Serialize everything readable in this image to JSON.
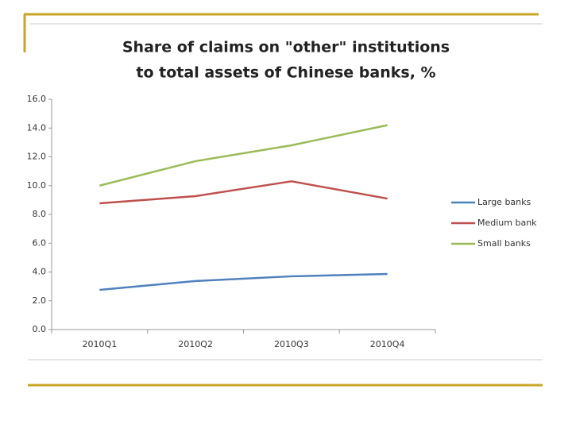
{
  "chart_data": {
    "type": "line",
    "title": [
      "Share of claims on \"other\" institutions",
      "to total assets of Chinese banks, %"
    ],
    "categories": [
      "2010Q1",
      "2010Q2",
      "2010Q3",
      "2010Q4"
    ],
    "series": [
      {
        "name": "Large banks",
        "color": "#4f81bd",
        "values": [
          2.76,
          3.37,
          3.7,
          3.86
        ]
      },
      {
        "name": "Medium bank",
        "color": "#c0504d",
        "values": [
          8.77,
          9.27,
          10.3,
          9.1
        ]
      },
      {
        "name": "Small banks",
        "color": "#9bbb59",
        "values": [
          10.0,
          11.7,
          12.8,
          14.2
        ]
      }
    ],
    "ylim": [
      0,
      16
    ],
    "yticks": [
      {
        "value": 0,
        "label": "0.0"
      },
      {
        "value": 2,
        "label": "2.0"
      },
      {
        "value": 4,
        "label": "4.0"
      },
      {
        "value": 6,
        "label": "6.0"
      },
      {
        "value": 8,
        "label": "8.0"
      },
      {
        "value": 10,
        "label": "10.0"
      },
      {
        "value": 12,
        "label": "12.0"
      },
      {
        "value": 14,
        "label": "14.0"
      },
      {
        "value": 16,
        "label": "16.0"
      }
    ],
    "legend": "right",
    "grid": false
  }
}
